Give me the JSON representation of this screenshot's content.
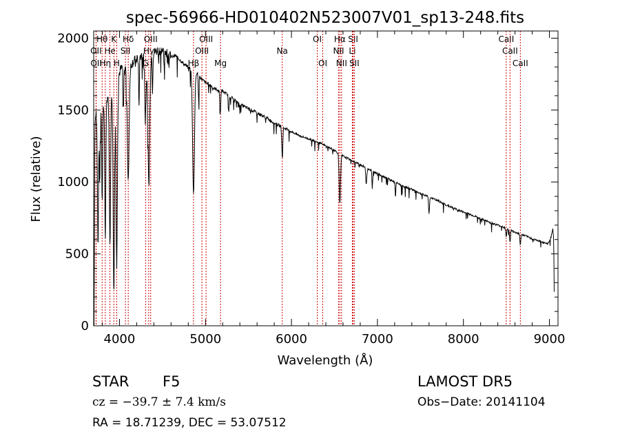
{
  "chart_data": {
    "type": "line",
    "title": "spec-56966-HD010402N523007V01_sp13-248.fits",
    "xlabel": "Wavelength (Å)",
    "ylabel": "Flux (relative)",
    "xlim": [
      3700,
      9100
    ],
    "ylim": [
      0,
      2050
    ],
    "x_ticks": [
      4000,
      5000,
      6000,
      7000,
      8000,
      9000
    ],
    "y_ticks": [
      0,
      500,
      1000,
      1500,
      2000
    ],
    "grid": false,
    "continuum": [
      [
        3700,
        0
      ],
      [
        3703,
        520
      ],
      [
        3708,
        1180
      ],
      [
        3715,
        1380
      ],
      [
        3725,
        1550
      ],
      [
        3735,
        1420
      ],
      [
        3750,
        1450
      ],
      [
        3770,
        1500
      ],
      [
        3800,
        1550
      ],
      [
        3830,
        1500
      ],
      [
        3860,
        1600
      ],
      [
        3890,
        1550
      ],
      [
        3920,
        1650
      ],
      [
        3950,
        1700
      ],
      [
        3980,
        1720
      ],
      [
        4010,
        1780
      ],
      [
        4040,
        1800
      ],
      [
        4080,
        1790
      ],
      [
        4120,
        1800
      ],
      [
        4160,
        1840
      ],
      [
        4200,
        1850
      ],
      [
        4250,
        1880
      ],
      [
        4300,
        1870
      ],
      [
        4360,
        1880
      ],
      [
        4400,
        1900
      ],
      [
        4450,
        1920
      ],
      [
        4500,
        1910
      ],
      [
        4550,
        1900
      ],
      [
        4600,
        1870
      ],
      [
        4650,
        1880
      ],
      [
        4700,
        1850
      ],
      [
        4750,
        1820
      ],
      [
        4800,
        1800
      ],
      [
        4850,
        1780
      ],
      [
        4900,
        1760
      ],
      [
        4950,
        1720
      ],
      [
        5000,
        1690
      ],
      [
        5050,
        1680
      ],
      [
        5100,
        1650
      ],
      [
        5200,
        1630
      ],
      [
        5300,
        1590
      ],
      [
        5400,
        1540
      ],
      [
        5500,
        1510
      ],
      [
        5600,
        1480
      ],
      [
        5700,
        1450
      ],
      [
        5800,
        1410
      ],
      [
        5900,
        1380
      ],
      [
        6000,
        1350
      ],
      [
        6100,
        1320
      ],
      [
        6200,
        1300
      ],
      [
        6300,
        1280
      ],
      [
        6400,
        1250
      ],
      [
        6500,
        1220
      ],
      [
        6600,
        1180
      ],
      [
        6700,
        1150
      ],
      [
        6800,
        1120
      ],
      [
        6900,
        1090
      ],
      [
        7000,
        1060
      ],
      [
        7100,
        1030
      ],
      [
        7200,
        1000
      ],
      [
        7300,
        970
      ],
      [
        7400,
        950
      ],
      [
        7500,
        920
      ],
      [
        7600,
        895
      ],
      [
        7700,
        870
      ],
      [
        7800,
        840
      ],
      [
        7900,
        815
      ],
      [
        8000,
        790
      ],
      [
        8100,
        770
      ],
      [
        8200,
        745
      ],
      [
        8300,
        720
      ],
      [
        8400,
        700
      ],
      [
        8500,
        680
      ],
      [
        8600,
        650
      ],
      [
        8700,
        630
      ],
      [
        8800,
        605
      ],
      [
        8900,
        585
      ],
      [
        8980,
        570
      ],
      [
        9000,
        590
      ],
      [
        9020,
        620
      ],
      [
        9040,
        680
      ],
      [
        9050,
        600
      ],
      [
        9055,
        300
      ],
      [
        9058,
        100
      ]
    ],
    "absorption_features": [
      {
        "x": 3705,
        "depth": 1100,
        "width": 3
      },
      {
        "x": 3750,
        "depth": 900,
        "width": 6
      },
      {
        "x": 3770,
        "depth": 500,
        "width": 5
      },
      {
        "x": 3798,
        "depth": 700,
        "width": 5
      },
      {
        "x": 3835,
        "depth": 900,
        "width": 6
      },
      {
        "x": 3889,
        "depth": 1000,
        "width": 7
      },
      {
        "x": 3934,
        "depth": 1400,
        "width": 8
      },
      {
        "x": 3968,
        "depth": 1300,
        "width": 8
      },
      {
        "x": 4046,
        "depth": 300,
        "width": 4
      },
      {
        "x": 4102,
        "depth": 800,
        "width": 10
      },
      {
        "x": 4227,
        "depth": 350,
        "width": 4
      },
      {
        "x": 4300,
        "depth": 450,
        "width": 6
      },
      {
        "x": 4340,
        "depth": 850,
        "width": 11
      },
      {
        "x": 4384,
        "depth": 250,
        "width": 4
      },
      {
        "x": 4861,
        "depth": 850,
        "width": 11
      },
      {
        "x": 4920,
        "depth": 180,
        "width": 4
      },
      {
        "x": 5172,
        "depth": 170,
        "width": 5
      },
      {
        "x": 5270,
        "depth": 120,
        "width": 4
      },
      {
        "x": 5893,
        "depth": 200,
        "width": 6
      },
      {
        "x": 6563,
        "depth": 340,
        "width": 8
      },
      {
        "x": 6870,
        "depth": 110,
        "width": 6
      },
      {
        "x": 6940,
        "depth": 130,
        "width": 4
      },
      {
        "x": 7210,
        "depth": 110,
        "width": 4
      },
      {
        "x": 7600,
        "depth": 120,
        "width": 5
      },
      {
        "x": 8498,
        "depth": 60,
        "width": 5
      },
      {
        "x": 8542,
        "depth": 90,
        "width": 5
      },
      {
        "x": 8662,
        "depth": 80,
        "width": 5
      }
    ],
    "line_markers": [
      {
        "label": "Hθ",
        "x": 3798,
        "row": 0
      },
      {
        "label": "OII",
        "x": 3727,
        "row": 1
      },
      {
        "label": "OII",
        "x": 3729,
        "row": 2
      },
      {
        "label": "He",
        "x": 3889,
        "row": 1
      },
      {
        "label": "Hη",
        "x": 3835,
        "row": 2
      },
      {
        "label": "K",
        "x": 3934,
        "row": 0
      },
      {
        "label": "SII",
        "x": 4069,
        "row": 1
      },
      {
        "label": "H",
        "x": 3968,
        "row": 2
      },
      {
        "label": "Hδ",
        "x": 4102,
        "row": 0
      },
      {
        "label": "Hγ",
        "x": 4340,
        "row": 1
      },
      {
        "label": "G",
        "x": 4304,
        "row": 2
      },
      {
        "label": "OIII",
        "x": 4363,
        "row": 0
      },
      {
        "label": "OIII",
        "x": 5007,
        "row": 0
      },
      {
        "label": "OIII",
        "x": 4959,
        "row": 1
      },
      {
        "label": "Hβ",
        "x": 4861,
        "row": 2
      },
      {
        "label": "Mg",
        "x": 5175,
        "row": 2
      },
      {
        "label": "Na",
        "x": 5893,
        "row": 1
      },
      {
        "label": "OI",
        "x": 6300,
        "row": 0
      },
      {
        "label": "OI",
        "x": 6364,
        "row": 2
      },
      {
        "label": "Hα",
        "x": 6563,
        "row": 0
      },
      {
        "label": "NII",
        "x": 6548,
        "row": 1
      },
      {
        "label": "NII",
        "x": 6583,
        "row": 2
      },
      {
        "label": "SII",
        "x": 6717,
        "row": 0
      },
      {
        "label": "Li",
        "x": 6708,
        "row": 1
      },
      {
        "label": "SII",
        "x": 6731,
        "row": 2
      },
      {
        "label": "CaII",
        "x": 8498,
        "row": 0
      },
      {
        "label": "CaII",
        "x": 8542,
        "row": 1
      },
      {
        "label": "CaII",
        "x": 8662,
        "row": 2
      }
    ]
  },
  "info": {
    "object_class": "STAR",
    "subclass": "F5",
    "survey": "LAMOST DR5",
    "cz": "cz = −39.7 ± 7.4 km/s",
    "obs_date": "Obs−Date: 20141104",
    "coords": "RA =  18.71239, DEC =  53.07512"
  }
}
